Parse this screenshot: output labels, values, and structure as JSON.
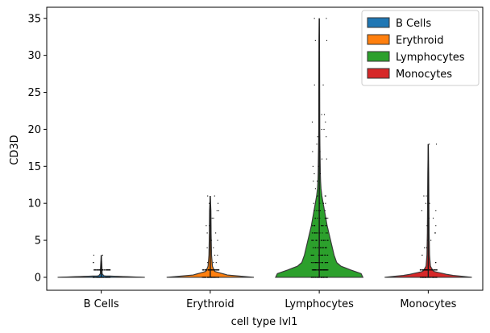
{
  "chart_data": {
    "type": "violin",
    "xlabel": "cell type lvl1",
    "ylabel": "CD3D",
    "ylim": [
      -1.75,
      36.5
    ],
    "yticks": [
      0,
      5,
      10,
      15,
      20,
      25,
      30,
      35
    ],
    "categories": [
      "B Cells",
      "Erythroid",
      "Lymphocytes",
      "Monocytes"
    ],
    "legend": {
      "position": "top-right",
      "entries": [
        {
          "label": "B Cells",
          "color": "#1f77b4"
        },
        {
          "label": "Erythroid",
          "color": "#ff7f0e"
        },
        {
          "label": "Lymphocytes",
          "color": "#2ca02c"
        },
        {
          "label": "Monocytes",
          "color": "#d62728"
        }
      ]
    },
    "series": [
      {
        "category": "B Cells",
        "color": "#1f77b4",
        "max": 3,
        "density": [
          [
            0,
            1.0
          ],
          [
            0.2,
            0.06
          ],
          [
            0.5,
            0.02
          ],
          [
            1,
            0.02
          ],
          [
            2,
            0.01
          ],
          [
            3,
            0.0
          ]
        ],
        "points": [
          0,
          1,
          2,
          3
        ]
      },
      {
        "category": "Erythroid",
        "color": "#ff7f0e",
        "max": 11,
        "density": [
          [
            0,
            1.0
          ],
          [
            0.3,
            0.4
          ],
          [
            0.8,
            0.1
          ],
          [
            1.5,
            0.05
          ],
          [
            3,
            0.03
          ],
          [
            6,
            0.02
          ],
          [
            9,
            0.015
          ],
          [
            11,
            0.0
          ]
        ],
        "points": [
          0,
          1,
          2,
          3,
          4,
          5,
          6,
          7,
          8,
          9,
          10,
          11
        ]
      },
      {
        "category": "Lymphocytes",
        "color": "#2ca02c",
        "max": 35,
        "density": [
          [
            0,
            1.0
          ],
          [
            0.5,
            0.96
          ],
          [
            1,
            0.72
          ],
          [
            1.5,
            0.5
          ],
          [
            2,
            0.4
          ],
          [
            3,
            0.34
          ],
          [
            4,
            0.3
          ],
          [
            5,
            0.26
          ],
          [
            6,
            0.22
          ],
          [
            7,
            0.18
          ],
          [
            8,
            0.15
          ],
          [
            9,
            0.12
          ],
          [
            10,
            0.09
          ],
          [
            11,
            0.06
          ],
          [
            12,
            0.04
          ],
          [
            13,
            0.03
          ],
          [
            14,
            0.025
          ],
          [
            16,
            0.02
          ],
          [
            18,
            0.015
          ],
          [
            20,
            0.012
          ],
          [
            24,
            0.01
          ],
          [
            28,
            0.008
          ],
          [
            32,
            0.006
          ],
          [
            35,
            0.0
          ]
        ],
        "points": [
          0,
          1,
          2,
          3,
          4,
          5,
          6,
          7,
          8,
          9,
          10,
          11,
          12,
          13,
          14,
          15,
          16,
          17,
          18,
          19,
          20,
          21,
          22,
          26,
          32,
          35
        ]
      },
      {
        "category": "Monocytes",
        "color": "#d62728",
        "max": 18,
        "density": [
          [
            0,
            1.0
          ],
          [
            0.3,
            0.5
          ],
          [
            0.8,
            0.12
          ],
          [
            1.5,
            0.05
          ],
          [
            3,
            0.03
          ],
          [
            6,
            0.02
          ],
          [
            10,
            0.015
          ],
          [
            14,
            0.01
          ],
          [
            18,
            0.0
          ]
        ],
        "points": [
          0,
          1,
          2,
          3,
          4,
          5,
          6,
          7,
          8,
          9,
          10,
          11,
          18
        ]
      }
    ]
  }
}
